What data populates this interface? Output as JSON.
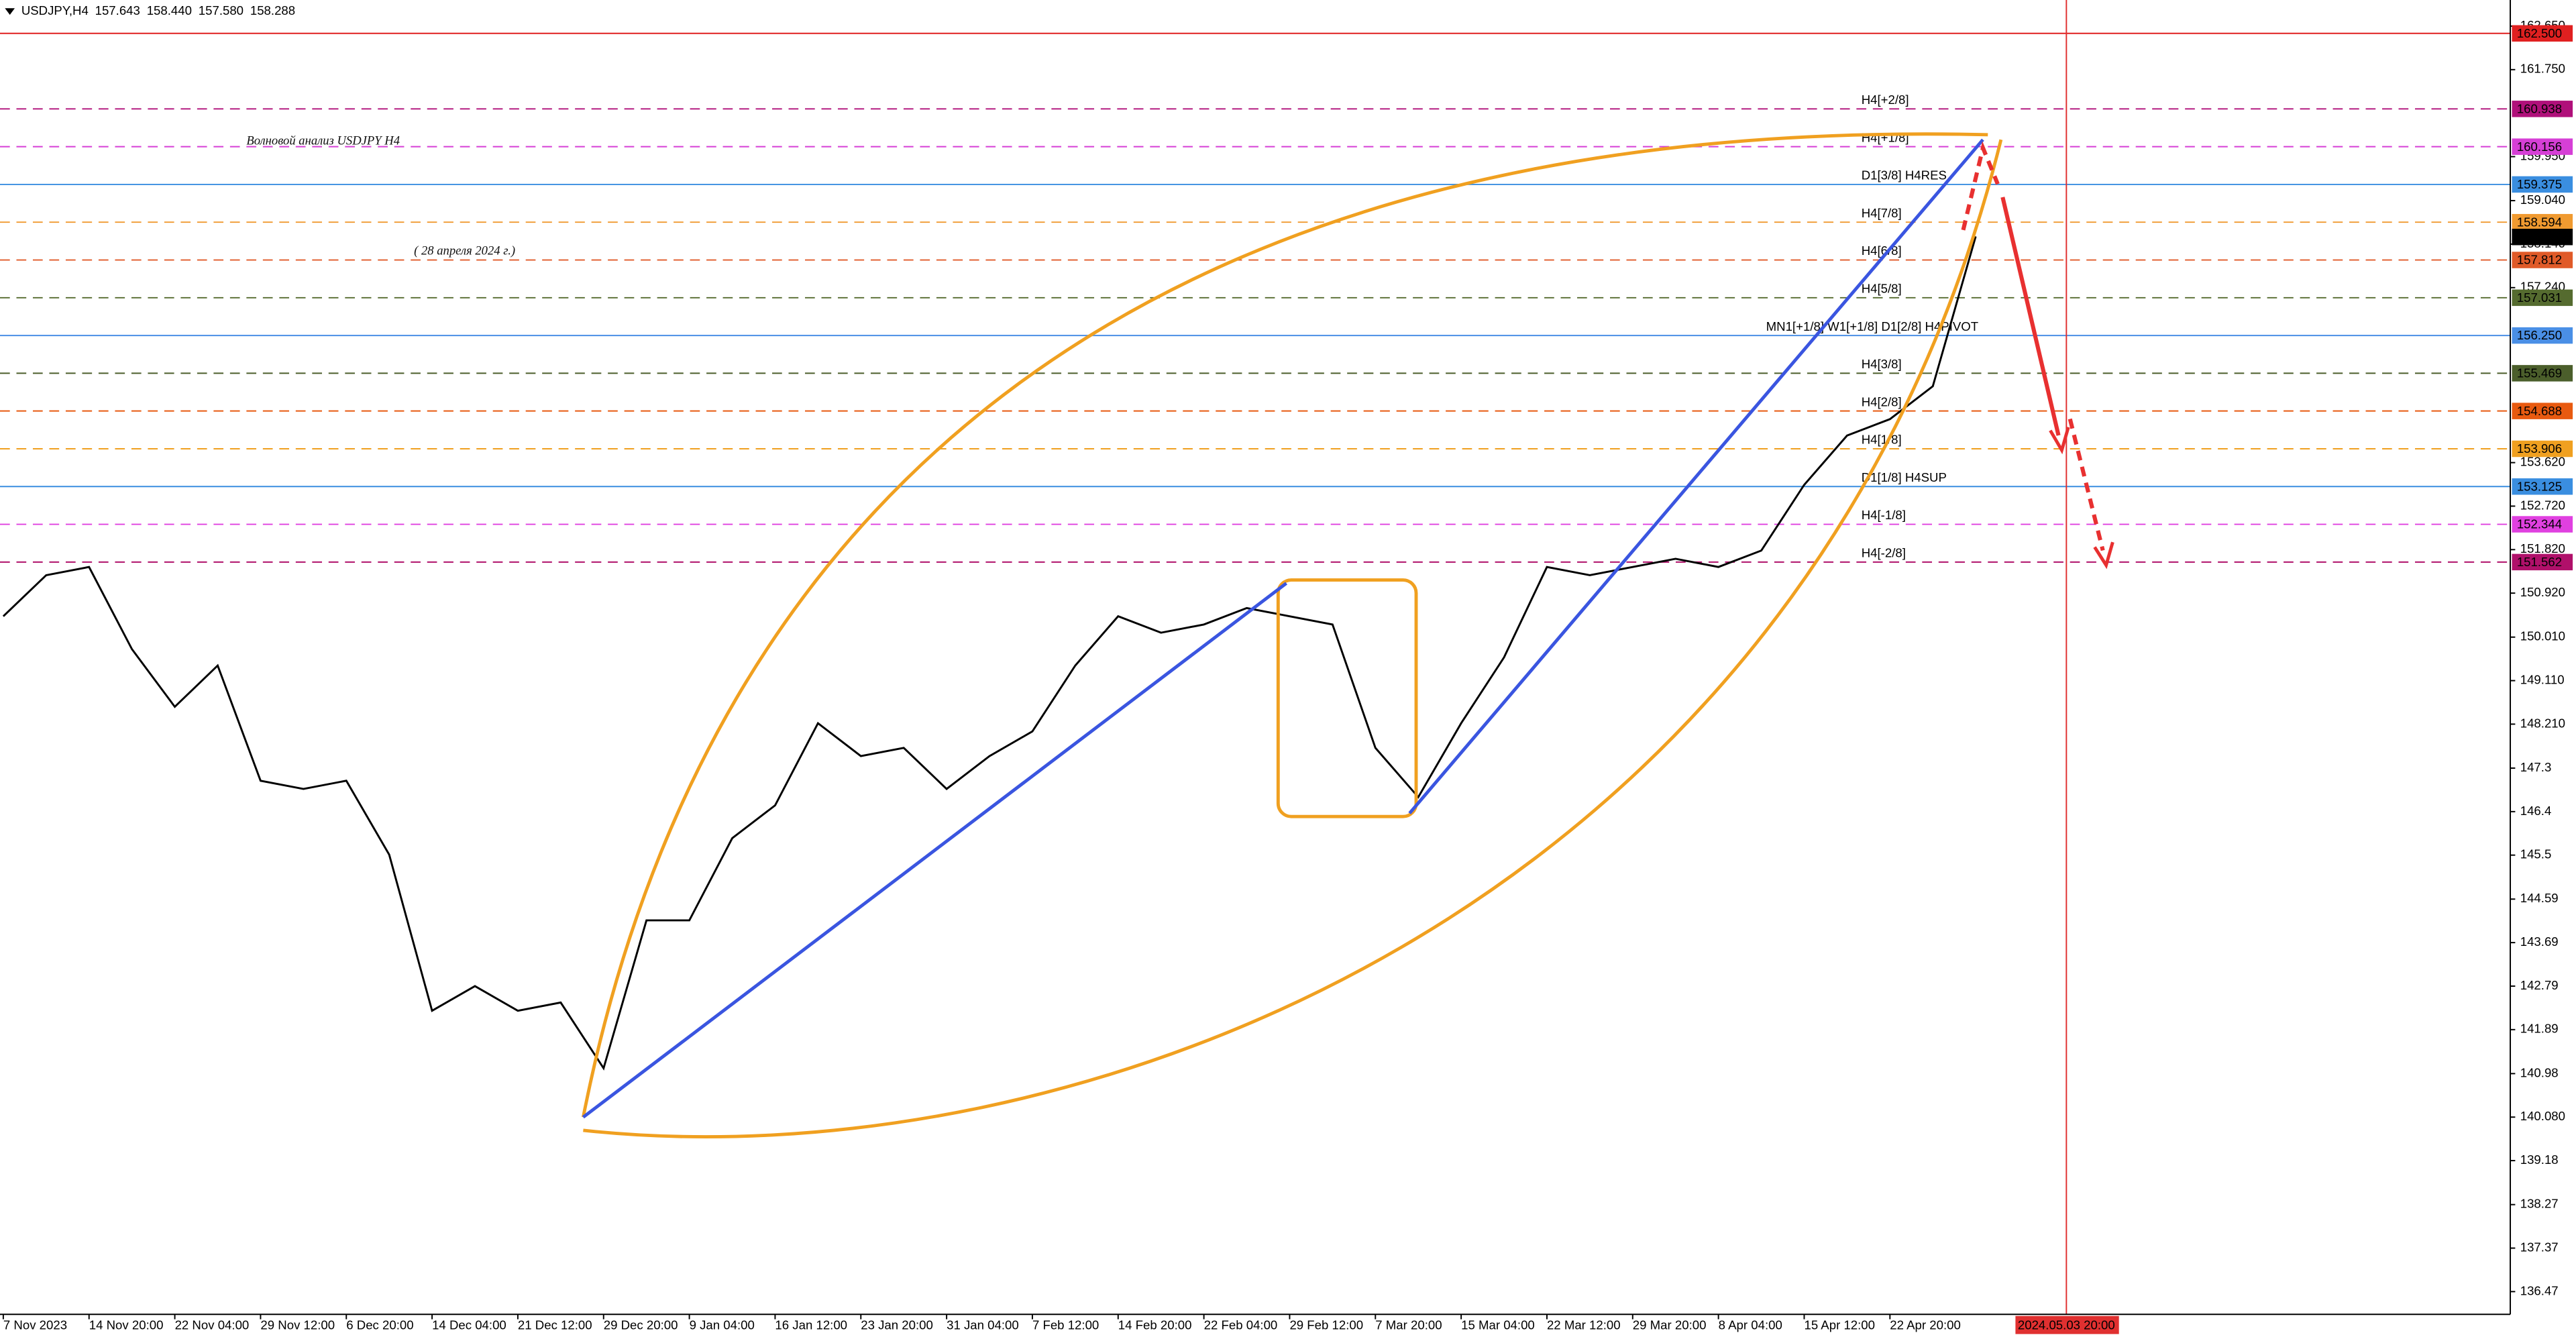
{
  "chart_data": {
    "type": "line",
    "symbol": "USDJPY,H4",
    "ohlc": [
      157.643,
      {
        "value": 158.44,
        "label": "158.440"
      },
      {
        "value": 157.58,
        "label": "157.580"
      },
      158.288
    ],
    "title": "Волновой анализ USDJPY H4",
    "subtitle": "( 28 апреля 2024 г.)",
    "color": "#000000",
    "categories": [
      "7 Nov 2023",
      null,
      "14 Nov 20:00",
      null,
      "22 Nov 04:00",
      null,
      "29 Nov 12:00",
      null,
      "6 Dec 20:00",
      null,
      "14 Dec 04:00",
      null,
      "21 Dec 12:00",
      null,
      "29 Dec 20:00",
      null,
      "9 Jan 04:00",
      null,
      "16 Jan 12:00",
      null,
      "23 Jan 20:00",
      null,
      "31 Jan 04:00",
      null,
      "7 Feb 12:00",
      null,
      "14 Feb 20:00",
      null,
      "22 Feb 04:00",
      null,
      "29 Feb 12:00",
      null,
      "7 Mar 20:00",
      null,
      "15 Mar 04:00",
      null,
      "22 Mar 12:00",
      null,
      "29 Mar 20:00",
      null,
      "8 Apr 04:00",
      null,
      "15 Apr 12:00",
      null,
      "22 Apr 20:00",
      null,
      null,
      null,
      "2024.05.03 20:00"
    ],
    "values": [
      150.44,
      151.29,
      151.46,
      149.76,
      148.57,
      149.42,
      147.04,
      146.87,
      147.04,
      145.51,
      142.28,
      142.79,
      142.28,
      142.45,
      141.09,
      144.15,
      144.15,
      145.85,
      146.53,
      148.23,
      147.55,
      147.72,
      146.87,
      147.55,
      148.06,
      149.42,
      150.44,
      150.1,
      150.27,
      150.61,
      150.44,
      150.27,
      147.72,
      146.7,
      148.23,
      149.59,
      151.46,
      151.29,
      151.46,
      151.63,
      151.46,
      151.8,
      153.16,
      154.18,
      154.52,
      155.2,
      158.3,
      null,
      null
    ],
    "cursor_color": "#e03030",
    "ylim": [
      136.0,
      163.19
    ],
    "yticks": [
      {
        "value": 162.65,
        "label": "162.650"
      },
      {
        "value": 161.75,
        "label": "161.750"
      },
      {
        "value": 159.95,
        "label": "159.950"
      },
      {
        "value": 159.04,
        "label": "159.040"
      },
      {
        "value": 158.14,
        "label": "158.140"
      },
      {
        "value": 157.24,
        "label": "157.240"
      },
      {
        "value": 153.62,
        "label": "153.620"
      },
      {
        "value": 152.72,
        "label": "152.720"
      },
      {
        "value": 151.82,
        "label": "151.820"
      },
      {
        "value": 150.92,
        "label": "150.920"
      },
      {
        "value": 150.01,
        "label": "150.010"
      },
      {
        "value": 149.11,
        "label": "149.110"
      },
      {
        "value": 148.21,
        "label": "148.210"
      },
      147.3,
      146.4,
      145.5,
      144.59,
      143.69,
      142.79,
      141.89,
      140.98,
      {
        "value": 140.08,
        "label": "140.080"
      },
      139.18,
      138.27,
      137.37,
      136.47
    ],
    "grid": false,
    "levels": [
      {
        "price": {
          "value": 162.5,
          "label": "162.500"
        },
        "color": "#e02020",
        "style": "solid"
      },
      {
        "name": "H4[+2/8]",
        "price": 160.938,
        "color": "#b0107a",
        "style": "dashed"
      },
      {
        "name": "H4[+1/8]",
        "price": 160.156,
        "color": "#d63fd6",
        "style": "dashed"
      },
      {
        "name": "D1[3/8] H4RES",
        "price": 159.375,
        "color": "#3a8ee0",
        "style": "solid"
      },
      {
        "name": "H4[7/8]",
        "price": 158.594,
        "color": "#f09a30",
        "style": "dashed"
      },
      {
        "name": "H4[6/8]",
        "price": 157.812,
        "color": "#e05a28",
        "style": "dashed"
      },
      {
        "name": "H4[5/8]",
        "price": 157.031,
        "color": "#556b2f",
        "style": "dashed"
      },
      {
        "name": "MN1[+1/8] W1[+1/8] D1[2/8] H4PIVOT",
        "price": {
          "value": 156.25,
          "label": "156.250"
        },
        "color": "#4a8fe6",
        "style": "solid"
      },
      {
        "name": "H4[3/8]",
        "price": 155.469,
        "color": "#4b5e2b",
        "style": "dashed"
      },
      {
        "name": "H4[2/8]",
        "price": 154.688,
        "color": "#e85a10",
        "style": "dashed"
      },
      {
        "name": "H4[1/8]",
        "price": 153.906,
        "color": "#f0a020",
        "style": "dashed"
      },
      {
        "name": "D1[1/8] H4SUP",
        "price": 153.125,
        "color": "#3a8ee0",
        "style": "solid"
      },
      {
        "name": "H4[-1/8]",
        "price": 152.344,
        "color": "#e040e0",
        "style": "dashed"
      },
      {
        "name": "H4[-2/8]",
        "price": 151.562,
        "color": "#b0106a",
        "style": "dashed"
      }
    ]
  }
}
